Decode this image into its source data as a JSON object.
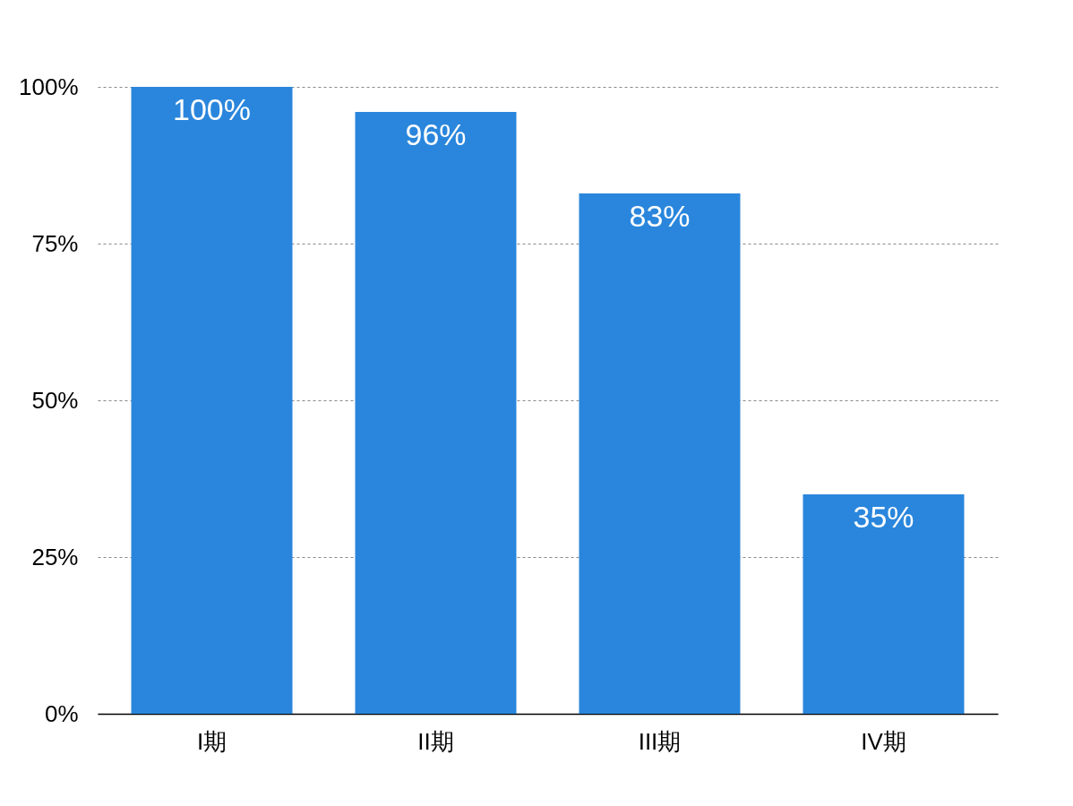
{
  "chart_data": {
    "type": "bar",
    "categories": [
      "I期",
      "II期",
      "III期",
      "IV期"
    ],
    "values": [
      100,
      96,
      83,
      35
    ],
    "color": "#2a86dc",
    "value_labels": [
      "100%",
      "96%",
      "83%",
      "35%"
    ],
    "ylim": [
      0,
      100
    ],
    "yticks": [
      {
        "value": 0,
        "label": "0%"
      },
      {
        "value": 25,
        "label": "25%"
      },
      {
        "value": 50,
        "label": "50%"
      },
      {
        "value": 75,
        "label": "75%"
      },
      {
        "value": 100,
        "label": "100%"
      }
    ],
    "grid": "y"
  }
}
